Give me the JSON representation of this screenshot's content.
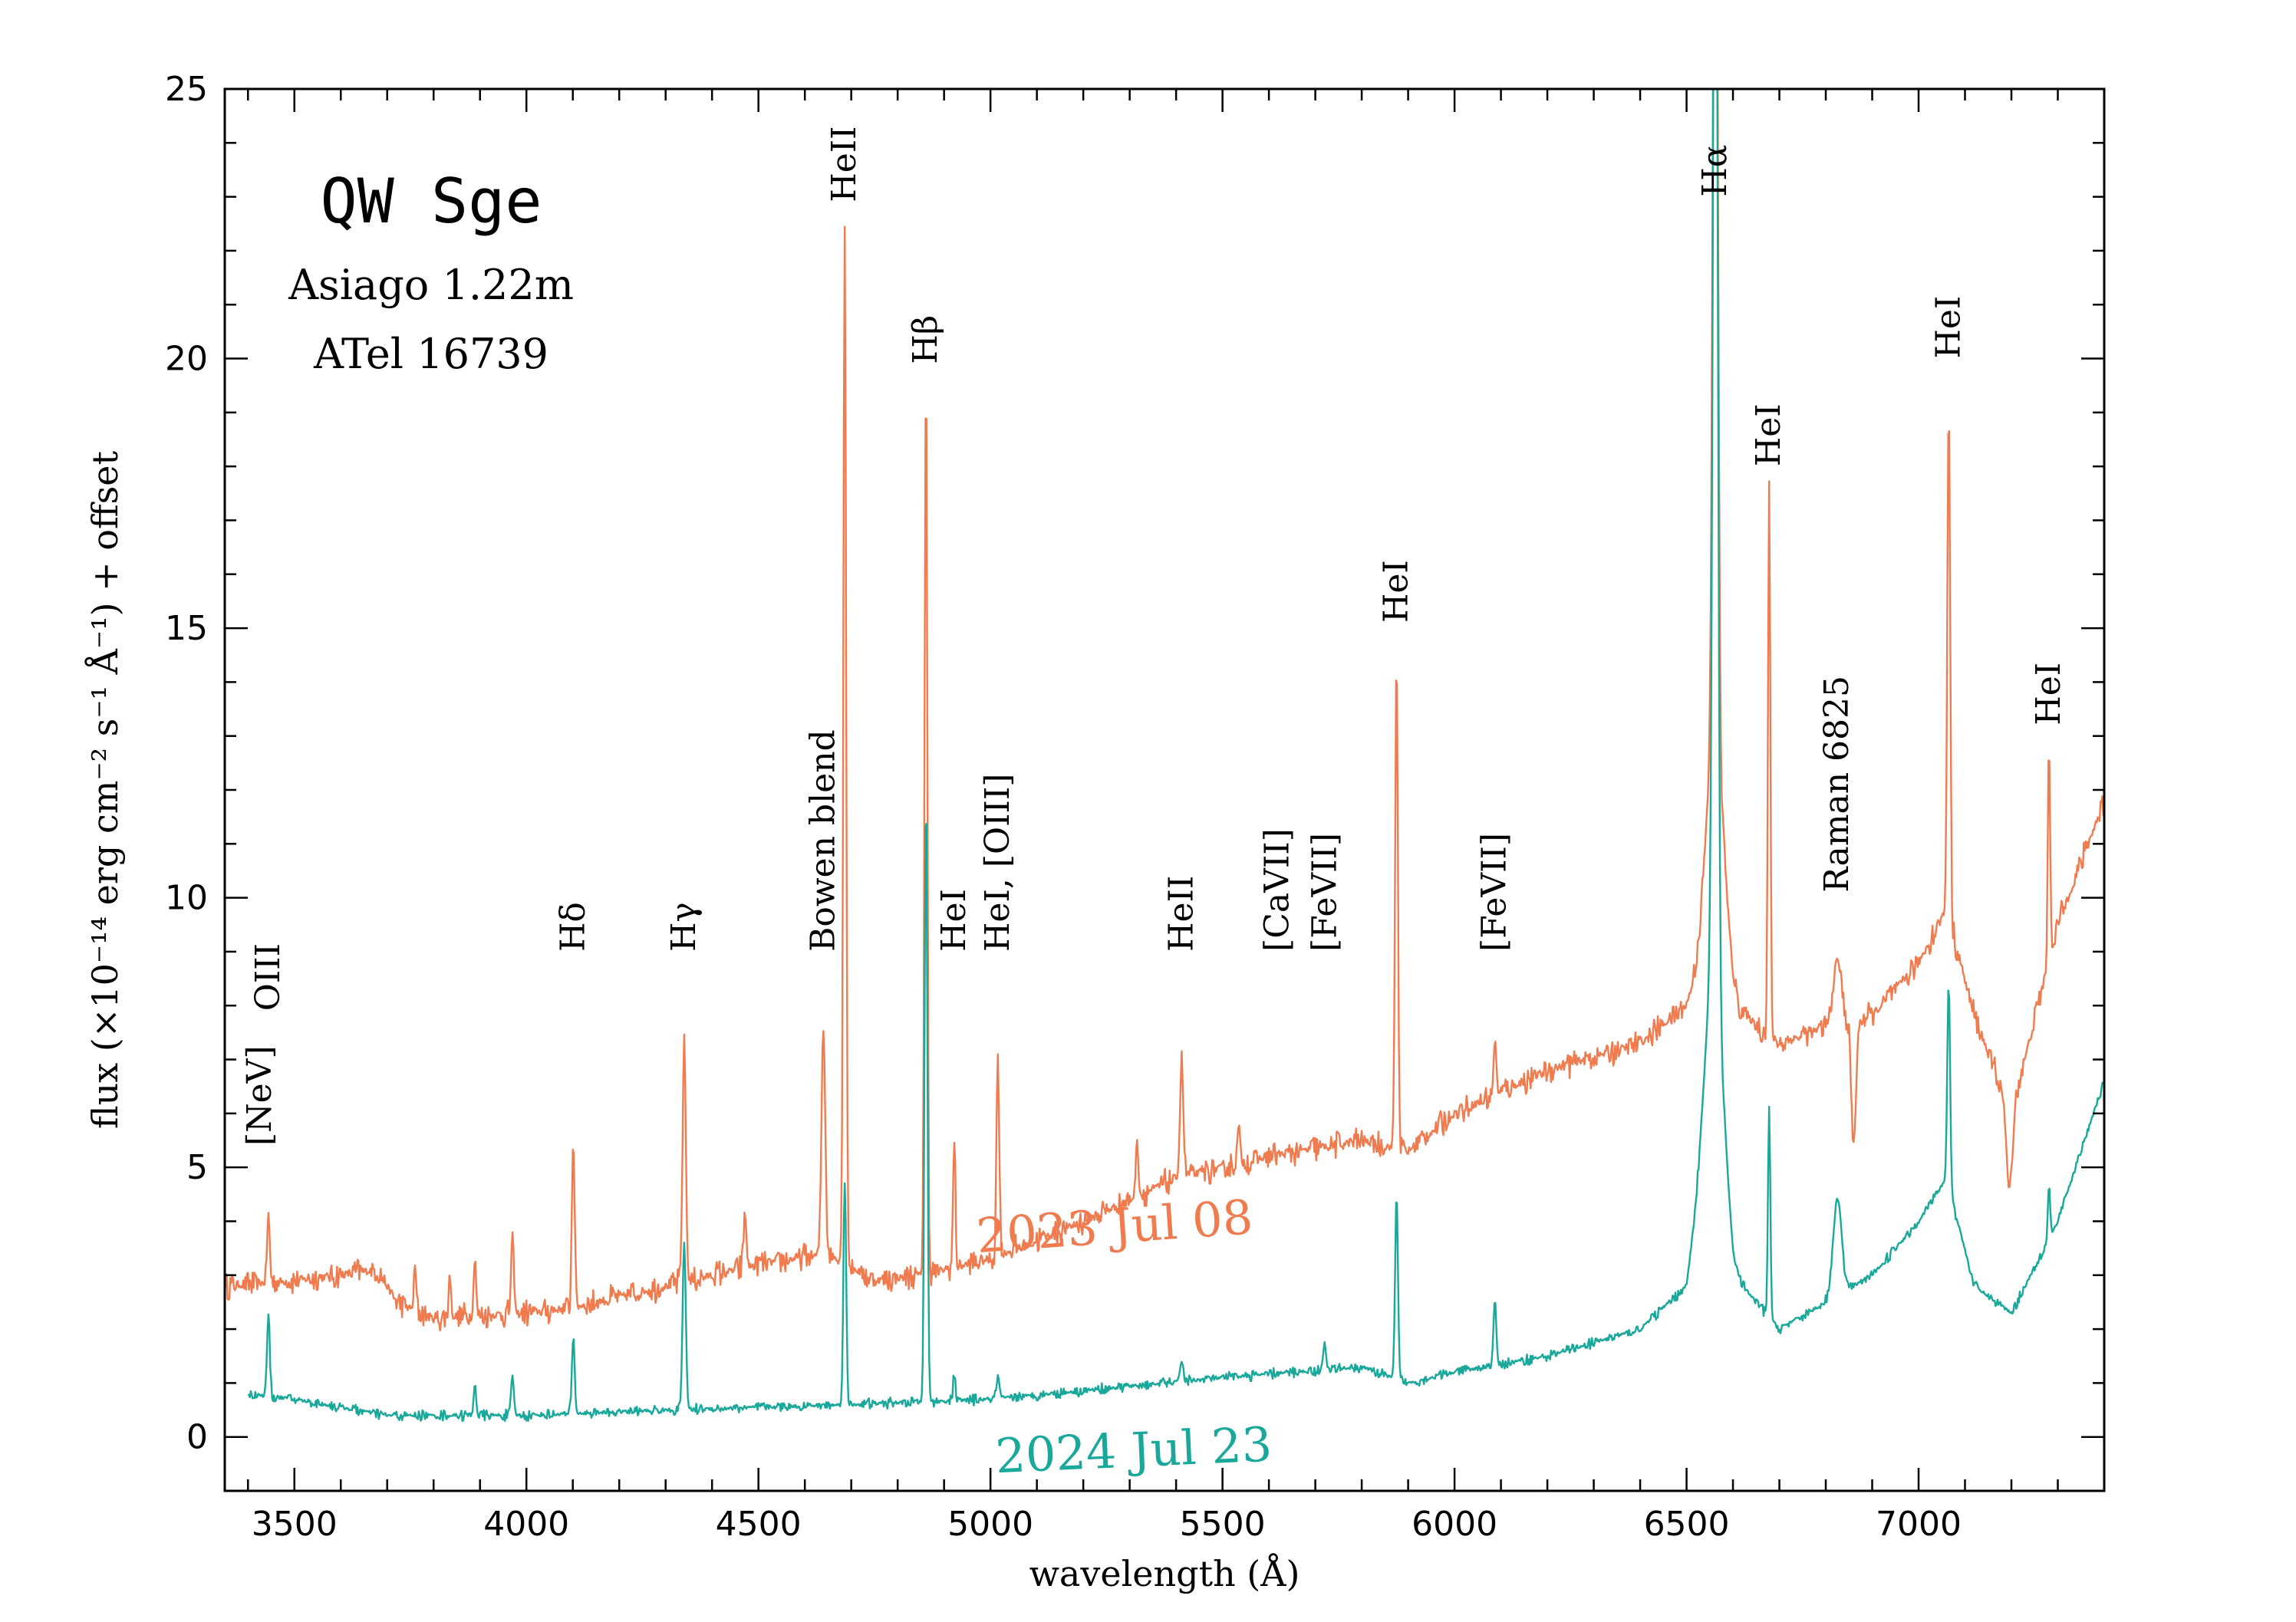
{
  "chart_data": {
    "type": "line",
    "title": "QW Sge",
    "subtitles": [
      "Asiago 1.22m",
      "ATel 16739"
    ],
    "xlabel": "wavelength (Å)",
    "ylabel": "flux (×10⁻¹⁴ erg cm⁻² s⁻¹ Å⁻¹) + offset",
    "xlim": [
      3350,
      7400
    ],
    "ylim": [
      -1,
      25
    ],
    "xticks": [
      3500,
      4000,
      4500,
      5000,
      5500,
      6000,
      6500,
      7000
    ],
    "xtick_labels": [
      "3500",
      "4000",
      "4500",
      "5000",
      "5500",
      "6000",
      "6500",
      "7000"
    ],
    "yticks": [
      0,
      5,
      10,
      15,
      20,
      25
    ],
    "ytick_labels": [
      "0",
      "5",
      "10",
      "15",
      "20",
      "25"
    ],
    "grid": false,
    "colors": {
      "jul2023": "#f07b4f",
      "jul2024": "#1aa89a"
    },
    "series": [
      {
        "name": "2023 Jul 08",
        "label_position": [
          5270,
          3.6
        ],
        "continuum": [
          [
            3350,
            2.8
          ],
          [
            3500,
            2.9
          ],
          [
            3680,
            3.1
          ],
          [
            3720,
            2.5
          ],
          [
            3800,
            2.2
          ],
          [
            4000,
            2.3
          ],
          [
            4100,
            2.4
          ],
          [
            4300,
            2.8
          ],
          [
            4500,
            3.2
          ],
          [
            4650,
            3.4
          ],
          [
            4750,
            2.9
          ],
          [
            4850,
            3.0
          ],
          [
            5000,
            3.3
          ],
          [
            5200,
            4.0
          ],
          [
            5400,
            4.8
          ],
          [
            5600,
            5.2
          ],
          [
            5800,
            5.5
          ],
          [
            5900,
            5.3
          ],
          [
            6000,
            6.0
          ],
          [
            6200,
            6.8
          ],
          [
            6400,
            7.3
          ],
          [
            6500,
            8.0
          ],
          [
            6550,
            9.0
          ],
          [
            6600,
            8.0
          ],
          [
            6700,
            7.3
          ],
          [
            6800,
            7.6
          ],
          [
            6900,
            7.8
          ],
          [
            7000,
            8.8
          ],
          [
            7060,
            9.8
          ],
          [
            7120,
            7.8
          ],
          [
            7200,
            6.0
          ],
          [
            7300,
            9.5
          ],
          [
            7400,
            11.8
          ]
        ],
        "lines": [
          [
            3444,
            1.2,
            6
          ],
          [
            3760,
            0.8,
            5
          ],
          [
            3835,
            0.8,
            5
          ],
          [
            3889,
            1.1,
            5
          ],
          [
            3970,
            1.4,
            6
          ],
          [
            4101,
            3.2,
            6
          ],
          [
            4340,
            4.5,
            7
          ],
          [
            4471,
            1.0,
            6
          ],
          [
            4640,
            4.3,
            8
          ],
          [
            4686,
            19.3,
            6
          ],
          [
            4861,
            16.7,
            6
          ],
          [
            4922,
            2.4,
            5
          ],
          [
            5016,
            3.7,
            6
          ],
          [
            5316,
            1.0,
            6
          ],
          [
            5412,
            2.2,
            7
          ],
          [
            5535,
            0.7,
            6
          ],
          [
            5875,
            9.1,
            6
          ],
          [
            6087,
            1.0,
            6
          ],
          [
            6562,
            21.0,
            10
          ],
          [
            6562,
            4.0,
            40
          ],
          [
            6678,
            10.2,
            5
          ],
          [
            6825,
            1.2,
            18
          ],
          [
            7065,
            9.6,
            6
          ],
          [
            7281,
            4.0,
            5
          ]
        ],
        "absorptions": [
          [
            6860,
            -2.3,
            10
          ],
          [
            7195,
            -1.5,
            12
          ]
        ]
      },
      {
        "name": "2024 Jul 23",
        "label_position": [
          5310,
          -0.55
        ],
        "continuum": [
          [
            3400,
            0.8
          ],
          [
            3500,
            0.7
          ],
          [
            3700,
            0.4
          ],
          [
            4000,
            0.4
          ],
          [
            4300,
            0.5
          ],
          [
            4700,
            0.6
          ],
          [
            5000,
            0.7
          ],
          [
            5500,
            1.1
          ],
          [
            5800,
            1.3
          ],
          [
            5900,
            1.0
          ],
          [
            6000,
            1.2
          ],
          [
            6200,
            1.5
          ],
          [
            6400,
            2.0
          ],
          [
            6500,
            2.8
          ],
          [
            6550,
            6.0
          ],
          [
            6600,
            3.0
          ],
          [
            6700,
            2.0
          ],
          [
            6800,
            2.5
          ],
          [
            6900,
            3.0
          ],
          [
            7000,
            4.0
          ],
          [
            7060,
            4.8
          ],
          [
            7120,
            2.8
          ],
          [
            7200,
            2.3
          ],
          [
            7300,
            4.0
          ],
          [
            7400,
            6.6
          ]
        ],
        "lines": [
          [
            3444,
            1.5,
            6
          ],
          [
            3889,
            0.6,
            5
          ],
          [
            3970,
            0.7,
            6
          ],
          [
            4101,
            1.4,
            6
          ],
          [
            4340,
            3.1,
            7
          ],
          [
            4686,
            4.2,
            6
          ],
          [
            4861,
            11.3,
            6
          ],
          [
            4922,
            0.5,
            5
          ],
          [
            5016,
            0.4,
            6
          ],
          [
            5412,
            0.4,
            7
          ],
          [
            5720,
            0.5,
            6
          ],
          [
            5875,
            3.4,
            6
          ],
          [
            6087,
            1.2,
            6
          ],
          [
            6562,
            24.5,
            10
          ],
          [
            6562,
            3.0,
            40
          ],
          [
            6678,
            3.9,
            5
          ],
          [
            6825,
            1.8,
            18
          ],
          [
            7065,
            3.8,
            6
          ],
          [
            7281,
            1.0,
            5
          ]
        ],
        "absorptions": []
      }
    ],
    "annotations": [
      {
        "text": "[NeV]",
        "x": 3426,
        "y": 5.4
      },
      {
        "text": "OIII",
        "x": 3444,
        "y": 7.9
      },
      {
        "text": "Hδ",
        "x": 4101,
        "y": 9.0
      },
      {
        "text": "Hγ",
        "x": 4340,
        "y": 9.0
      },
      {
        "text": "Bowen blend",
        "x": 4640,
        "y": 9.0
      },
      {
        "text": "HeII",
        "x": 4686,
        "y": 22.9
      },
      {
        "text": "Hβ",
        "x": 4861,
        "y": 19.9
      },
      {
        "text": "HeI",
        "x": 4922,
        "y": 9.0
      },
      {
        "text": "HeI, [OIII]",
        "x": 5016,
        "y": 9.0
      },
      {
        "text": "HeII",
        "x": 5412,
        "y": 9.0
      },
      {
        "text": "[CaVII]",
        "x": 5619,
        "y": 9.0
      },
      {
        "text": "[FeVII]",
        "x": 5721,
        "y": 9.0
      },
      {
        "text": "HeI",
        "x": 5875,
        "y": 15.1
      },
      {
        "text": "[FeVII]",
        "x": 6087,
        "y": 9.0
      },
      {
        "text": "Hα",
        "x": 6562,
        "y": 23.0
      },
      {
        "text": "HeI",
        "x": 6678,
        "y": 18.0
      },
      {
        "text": "Raman 6825",
        "x": 6825,
        "y": 10.1
      },
      {
        "text": "HeI",
        "x": 7065,
        "y": 20.0
      },
      {
        "text": "HeI",
        "x": 7281,
        "y": 13.2
      }
    ]
  }
}
